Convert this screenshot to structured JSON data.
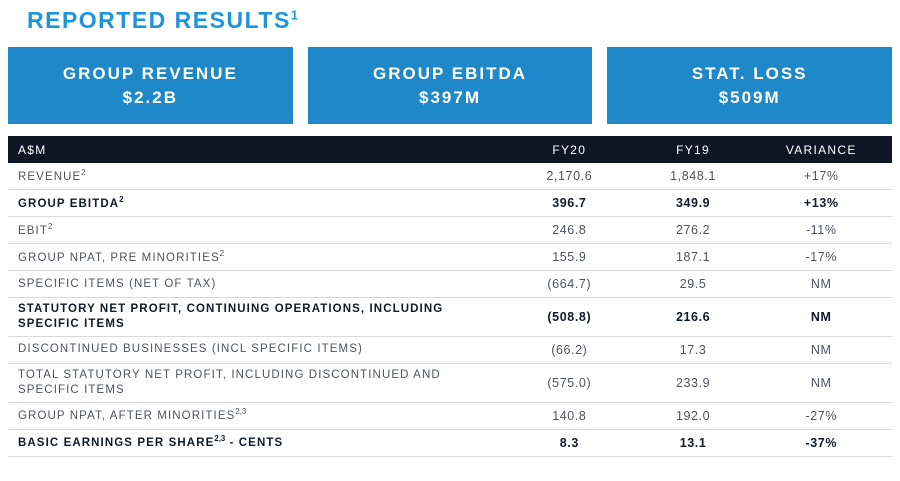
{
  "title": {
    "text": "REPORTED RESULTS",
    "sup": "1"
  },
  "colors": {
    "accent_blue": "#1e94de",
    "kpi_box_blue": "#1f88c9",
    "table_header_navy": "#0e1626",
    "bold_text": "#101a2b",
    "regular_text": "#4d5360",
    "separator_gray": "#d8dadc",
    "background": "#ffffff"
  },
  "kpi_boxes": [
    {
      "label": "GROUP REVENUE",
      "value": "$2.2B"
    },
    {
      "label": "GROUP EBITDA",
      "value": "$397M"
    },
    {
      "label": "STAT. LOSS",
      "value": "$509M"
    }
  ],
  "table": {
    "columns": [
      "A$M",
      "FY20",
      "FY19",
      "VARIANCE"
    ],
    "rows": [
      {
        "label": "REVENUE",
        "sup": "2",
        "suffix": "",
        "fy20": "2,170.6",
        "fy19": "1,848.1",
        "variance": "+17%",
        "bold": false
      },
      {
        "label": "GROUP EBITDA",
        "sup": "2",
        "suffix": "",
        "fy20": "396.7",
        "fy19": "349.9",
        "variance": "+13%",
        "bold": true
      },
      {
        "label": "EBIT",
        "sup": "2",
        "suffix": "",
        "fy20": "246.8",
        "fy19": "276.2",
        "variance": "-11%",
        "bold": false
      },
      {
        "label": "GROUP NPAT, PRE MINORITIES",
        "sup": "2",
        "suffix": "",
        "fy20": "155.9",
        "fy19": "187.1",
        "variance": "-17%",
        "bold": false
      },
      {
        "label": "SPECIFIC ITEMS (NET OF TAX)",
        "sup": "",
        "suffix": "",
        "fy20": "(664.7)",
        "fy19": "29.5",
        "variance": "NM",
        "bold": false
      },
      {
        "label": "STATUTORY NET PROFIT, CONTINUING OPERATIONS, INCLUDING SPECIFIC ITEMS",
        "sup": "",
        "suffix": "",
        "fy20": "(508.8)",
        "fy19": "216.6",
        "variance": "NM",
        "bold": true
      },
      {
        "label": "DISCONTINUED BUSINESSES (INCL SPECIFIC ITEMS)",
        "sup": "",
        "suffix": "",
        "fy20": "(66.2)",
        "fy19": "17.3",
        "variance": "NM",
        "bold": false
      },
      {
        "label": "TOTAL STATUTORY NET PROFIT, INCLUDING DISCONTINUED AND SPECIFIC ITEMS",
        "sup": "",
        "suffix": "",
        "fy20": "(575.0)",
        "fy19": "233.9",
        "variance": "NM",
        "bold": false
      },
      {
        "label": "GROUP NPAT, AFTER MINORITIES",
        "sup": "2,3",
        "suffix": "",
        "fy20": "140.8",
        "fy19": "192.0",
        "variance": "-27%",
        "bold": false
      },
      {
        "label": "BASIC EARNINGS PER SHARE",
        "sup": "2,3",
        "suffix": " - CENTS",
        "fy20": "8.3",
        "fy19": "13.1",
        "variance": "-37%",
        "bold": true
      }
    ]
  }
}
